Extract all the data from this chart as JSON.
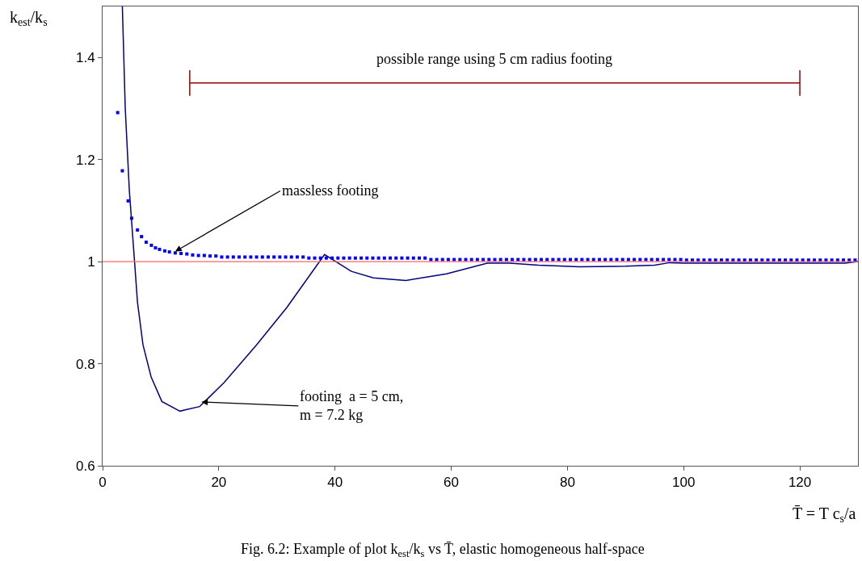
{
  "chart_data": {
    "type": "line",
    "title": "Fig. 6.2: Example of plot k$_{est}$/k$_{s}$ vs T̄, elastic homogeneous half-space",
    "xlabel": "T̄ = T c$_{s}$/a",
    "ylabel": "k$_{est}$/k$_{s}$",
    "xlim": [
      0,
      130
    ],
    "xticks": [
      0,
      20,
      40,
      60,
      80,
      100,
      120
    ],
    "ylim": [
      0.6,
      1.5
    ],
    "yticks": [
      0.6,
      0.8,
      1,
      1.2,
      1.4
    ],
    "grid": false,
    "series": [
      {
        "color": "#000080",
        "marker": "none",
        "line_style": "solid",
        "x": [
          3.4,
          3.9,
          4.6,
          5.5,
          6.0,
          6.95,
          8.35,
          10.2,
          13.3,
          16.7,
          20.9,
          26.5,
          31.7,
          38.2,
          42.8,
          46.6,
          52.2,
          59.2,
          66.2,
          70,
          75,
          82,
          90,
          95,
          97.6,
          100,
          110,
          120,
          127.8,
          130
        ],
        "values": [
          1.5,
          1.3,
          1.14,
          1.0,
          0.921,
          0.837,
          0.774,
          0.726,
          0.707,
          0.716,
          0.763,
          0.837,
          0.91,
          1.014,
          0.981,
          0.968,
          0.963,
          0.976,
          0.997,
          0.997,
          0.993,
          0.99,
          0.991,
          0.993,
          0.998,
          0.997,
          0.997,
          0.997,
          0.997,
          1.0
        ]
      },
      {
        "color": "#990000",
        "marker": "none",
        "line_style": "solid",
        "x": [
          15,
          120
        ],
        "values": [
          1.35,
          1.35
        ],
        "errors": [
          0.025,
          0.025
        ]
      },
      {
        "type": "scatter",
        "color": "#0000ff",
        "marker": "square",
        "x": [
          2.6,
          3.4,
          4.4,
          5.0,
          6.0,
          6.7,
          7.5,
          8.4,
          9.1,
          9.8,
          10.7,
          11.5,
          12.5,
          13.5,
          14.5,
          15.5,
          16.5,
          17.5,
          18.5,
          19.5,
          20.5,
          21.5,
          22.5,
          23.5,
          24.5,
          25.5,
          26.5,
          27.5,
          28.5,
          29.5,
          30.5,
          31.5,
          32.5,
          33.5,
          34.5,
          35.5,
          36.5,
          37.5,
          38.5,
          39.5,
          40.5,
          41.5,
          42.5,
          43.5,
          44.5,
          45.5,
          46.5,
          47.5,
          48.5,
          49.5,
          50.5,
          51.5,
          52.5,
          53.5,
          54.5,
          55.5,
          56.5,
          57.5,
          58.5,
          59.5,
          60.5,
          61.5,
          62.5,
          63.5,
          64.5,
          65.5,
          66.5,
          67.5,
          68.5,
          69.5,
          70.5,
          71.5,
          72.5,
          73.5,
          74.5,
          75.5,
          76.5,
          77.5,
          78.5,
          79.5,
          80.5,
          81.5,
          82.5,
          83.5,
          84.5,
          85.5,
          86.5,
          87.5,
          88.5,
          89.5,
          90.5,
          91.5,
          92.5,
          93.5,
          94.5,
          95.5,
          96.5,
          97.5,
          98.5,
          99.5,
          100.5,
          101.5,
          102.5,
          103.5,
          104.5,
          105.5,
          106.5,
          107.5,
          108.5,
          109.5,
          110.5,
          111.5,
          112.5,
          113.5,
          114.5,
          115.5,
          116.5,
          117.5,
          118.5,
          119.5,
          120.5,
          121.5,
          122.5,
          123.5,
          124.5,
          125.5,
          126.5,
          127.5,
          128.5,
          129.5
        ],
        "values": [
          1.292,
          1.178,
          1.119,
          1.085,
          1.062,
          1.049,
          1.038,
          1.032,
          1.027,
          1.024,
          1.021,
          1.019,
          1.017,
          1.016,
          1.015,
          1.013,
          1.012,
          1.012,
          1.011,
          1.011,
          1.009,
          1.009,
          1.009,
          1.009,
          1.009,
          1.009,
          1.009,
          1.009,
          1.009,
          1.009,
          1.009,
          1.009,
          1.009,
          1.009,
          1.009,
          1.007,
          1.007,
          1.007,
          1.007,
          1.007,
          1.007,
          1.007,
          1.007,
          1.007,
          1.007,
          1.007,
          1.007,
          1.007,
          1.007,
          1.007,
          1.007,
          1.007,
          1.007,
          1.007,
          1.007,
          1.007,
          1.004,
          1.004,
          1.004,
          1.004,
          1.004,
          1.004,
          1.004,
          1.004,
          1.004,
          1.004,
          1.004,
          1.004,
          1.004,
          1.004,
          1.004,
          1.004,
          1.004,
          1.004,
          1.004,
          1.004,
          1.004,
          1.004,
          1.004,
          1.004,
          1.004,
          1.004,
          1.004,
          1.004,
          1.004,
          1.004,
          1.004,
          1.004,
          1.004,
          1.004,
          1.004,
          1.004,
          1.004,
          1.004,
          1.004,
          1.004,
          1.004,
          1.004,
          1.004,
          1.004,
          1.003,
          1.003,
          1.003,
          1.003,
          1.003,
          1.003,
          1.003,
          1.003,
          1.003,
          1.003,
          1.003,
          1.003,
          1.003,
          1.003,
          1.003,
          1.003,
          1.003,
          1.003,
          1.003,
          1.003,
          1.003,
          1.003,
          1.003,
          1.003,
          1.003,
          1.003,
          1.003,
          1.003,
          1.003,
          1.003
        ]
      }
    ],
    "ref_lines": [
      {
        "axis": "y",
        "value": 1,
        "color": "#ff6666",
        "line_style": "solid"
      }
    ],
    "annotations": [
      {
        "text": "possible range using 5 cm radius footing",
        "x": 67.5,
        "y": 1.35
      },
      {
        "text": "massless footing",
        "x": 12.5,
        "y": 1.02
      },
      {
        "text": "footing  a = 5 cm,\nm = 7.2 kg",
        "x": 17,
        "y": 0.725
      }
    ]
  }
}
